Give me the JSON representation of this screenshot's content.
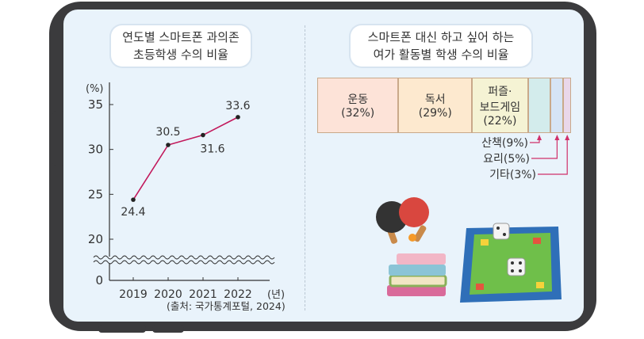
{
  "left_panel": {
    "title_line1": "연도별 스마트폰 과의존",
    "title_line2": "초등학생 수의 비율",
    "source": "(출처: 국가통계포털, 2024)"
  },
  "right_panel": {
    "title_line1": "스마트폰 대신 하고 싶어 하는",
    "title_line2": "여가 활동별 학생 수의 비율"
  },
  "chart_data": [
    {
      "type": "line",
      "title": "연도별 스마트폰 과의존 초등학생 수의 비율",
      "x": [
        "2019",
        "2020",
        "2021",
        "2022"
      ],
      "xunit": "(년)",
      "series": [
        {
          "values": [
            24.4,
            30.5,
            31.6,
            33.6
          ]
        }
      ],
      "point_labels": [
        "24.4",
        "30.5",
        "31.6",
        "33.6"
      ],
      "yunit": "(%)",
      "yticks": [
        0,
        20,
        25,
        30,
        35
      ],
      "axis_break": true,
      "color": "#c2185b"
    },
    {
      "type": "bar",
      "subtype": "stacked-100",
      "title": "스마트폰 대신 하고 싶어 하는 여가 활동별 학생 수의 비율",
      "categories": [
        "운동",
        "독서",
        "퍼즐·보드게임",
        "산책",
        "요리",
        "기타"
      ],
      "values": [
        32,
        29,
        22,
        9,
        5,
        3
      ],
      "inside_labels": [
        [
          "운동",
          "(32%)"
        ],
        [
          "독서",
          "(29%)"
        ],
        [
          "퍼즐·",
          "보드게임",
          "(22%)"
        ]
      ],
      "callout_labels": [
        "산책(9%)",
        "요리(5%)",
        "기타(3%)"
      ],
      "colors": [
        "#fde3d8",
        "#fde9cf",
        "#f5f3d4",
        "#d3ecec",
        "#d6e4f5",
        "#ead7ea"
      ]
    }
  ]
}
